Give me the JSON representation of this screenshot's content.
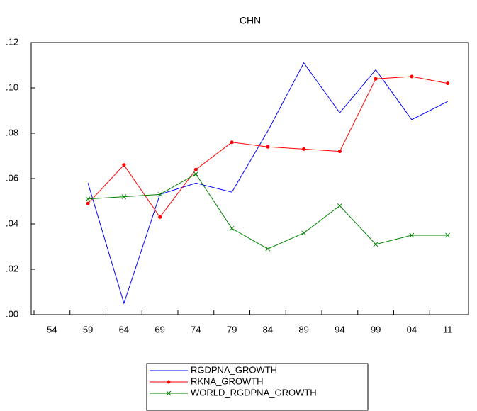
{
  "chart_data": {
    "type": "line",
    "title": "CHN",
    "categories": [
      "54",
      "59",
      "64",
      "69",
      "74",
      "79",
      "84",
      "89",
      "94",
      "99",
      "04",
      "11"
    ],
    "series": [
      {
        "name": "RGDPNA_GROWTH",
        "color": "#0000ff",
        "marker": "none",
        "values": [
          null,
          0.058,
          0.005,
          0.053,
          0.058,
          0.054,
          0.081,
          0.111,
          0.089,
          0.108,
          0.086,
          0.094
        ]
      },
      {
        "name": "RKNA_GROWTH",
        "color": "#ff0000",
        "marker": "circle",
        "values": [
          null,
          0.049,
          0.066,
          0.043,
          0.064,
          0.076,
          0.074,
          0.073,
          0.072,
          0.104,
          0.105,
          0.102
        ]
      },
      {
        "name": "WORLD_RGDPNA_GROWTH",
        "color": "#008000",
        "marker": "x",
        "values": [
          null,
          0.051,
          0.052,
          0.053,
          0.062,
          0.038,
          0.029,
          0.036,
          0.048,
          0.031,
          0.035,
          0.035
        ]
      }
    ],
    "ylim": [
      0,
      0.12
    ],
    "yticks": [
      {
        "value": 0,
        "label": ".00"
      },
      {
        "value": 0.02,
        "label": ".02"
      },
      {
        "value": 0.04,
        "label": ".04"
      },
      {
        "value": 0.06,
        "label": ".06"
      },
      {
        "value": 0.08,
        "label": ".08"
      },
      {
        "value": 0.1,
        "label": ".10"
      },
      {
        "value": 0.12,
        "label": ".12"
      }
    ],
    "grid": false,
    "legend": "bottom"
  }
}
